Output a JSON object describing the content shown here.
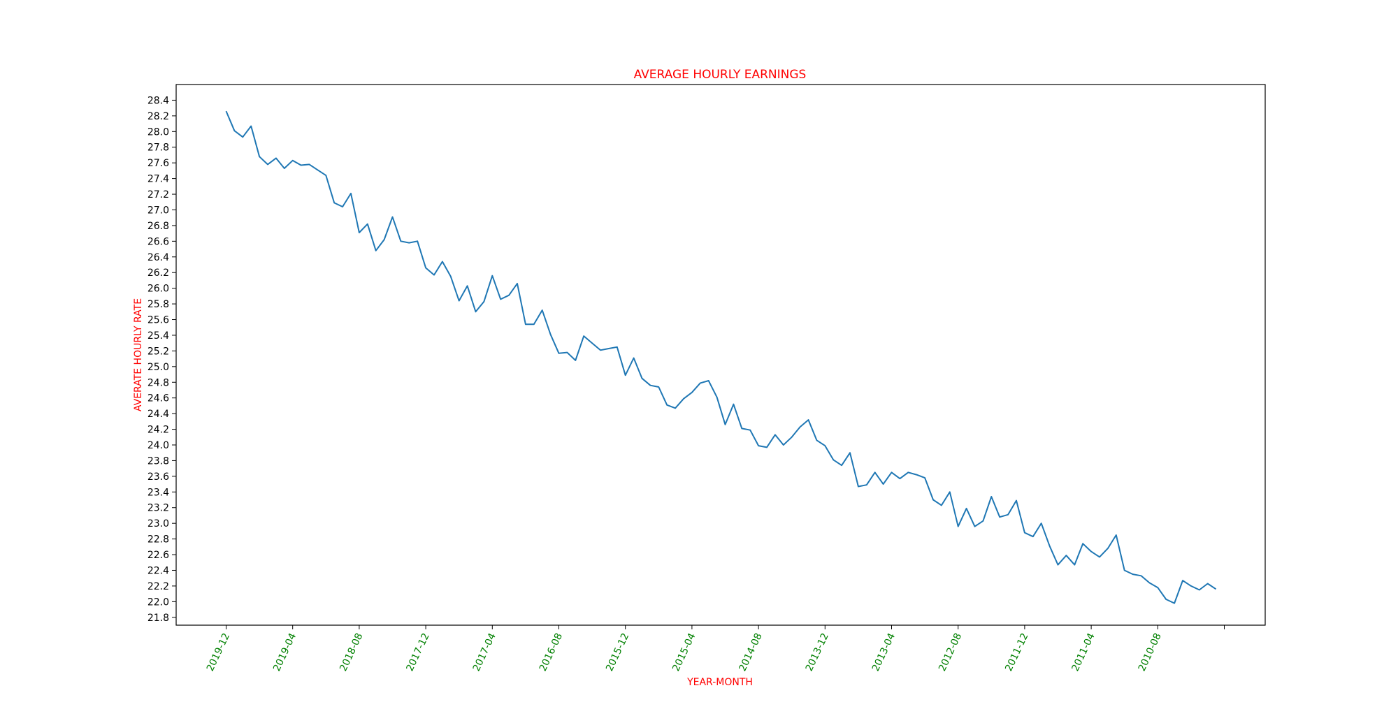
{
  "chart_data": {
    "type": "line",
    "title": "AVERAGE HOURLY EARNINGS",
    "xlabel": "YEAR-MONTH",
    "ylabel": "AVERATE HOURLY RATE",
    "title_color": "#ff0000",
    "xtick_color": "#008000",
    "line_color": "#1f77b4",
    "grid": false,
    "ylim": [
      21.7,
      28.6
    ],
    "yticks": [
      21.8,
      22.0,
      22.2,
      22.4,
      22.6,
      22.8,
      23.0,
      23.2,
      23.4,
      23.6,
      23.8,
      24.0,
      24.2,
      24.4,
      24.6,
      24.8,
      25.0,
      25.2,
      25.4,
      25.6,
      25.8,
      26.0,
      26.2,
      26.4,
      26.6,
      26.8,
      27.0,
      27.2,
      27.4,
      27.6,
      27.8,
      28.0,
      28.2,
      28.4
    ],
    "xticks": [
      "2019-12",
      "2019-04",
      "2018-08",
      "2017-12",
      "2017-04",
      "2016-08",
      "2015-12",
      "2015-04",
      "2014-08",
      "2013-12",
      "2013-04",
      "2012-08",
      "2011-12",
      "2011-04",
      "2010-08",
      ""
    ],
    "series": [
      {
        "values": [
          28.26,
          28.01,
          27.93,
          28.07,
          27.68,
          27.58,
          27.66,
          27.53,
          27.63,
          27.57,
          27.58,
          27.51,
          27.44,
          27.09,
          27.04,
          27.21,
          26.71,
          26.82,
          26.48,
          26.62,
          26.91,
          26.6,
          26.58,
          26.6,
          26.26,
          26.17,
          26.34,
          26.15,
          25.84,
          26.03,
          25.7,
          25.83,
          26.16,
          25.86,
          25.91,
          26.06,
          25.54,
          25.54,
          25.72,
          25.41,
          25.17,
          25.18,
          25.08,
          25.39,
          25.3,
          25.21,
          25.23,
          25.25,
          24.89,
          25.11,
          24.85,
          24.76,
          24.74,
          24.51,
          24.47,
          24.59,
          24.67,
          24.79,
          24.82,
          24.61,
          24.26,
          24.52,
          24.21,
          24.19,
          23.99,
          23.97,
          24.13,
          24.0,
          24.1,
          24.23,
          24.32,
          24.06,
          23.99,
          23.81,
          23.74,
          23.9,
          23.47,
          23.49,
          23.65,
          23.5,
          23.65,
          23.57,
          23.65,
          23.62,
          23.58,
          23.3,
          23.23,
          23.4,
          22.96,
          23.19,
          22.96,
          23.03,
          23.34,
          23.08,
          23.11,
          23.29,
          22.88,
          22.83,
          23.0,
          22.71,
          22.47,
          22.59,
          22.47,
          22.74,
          22.64,
          22.57,
          22.68,
          22.85,
          22.4,
          22.35,
          22.33,
          22.24,
          22.18,
          22.03,
          21.98,
          22.27,
          22.2,
          22.15,
          22.23,
          22.16
        ]
      }
    ]
  }
}
